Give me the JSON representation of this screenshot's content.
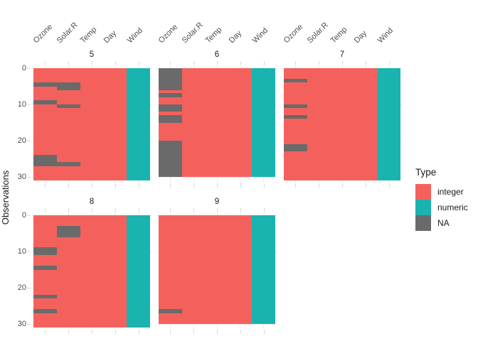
{
  "figure": {
    "y_axis_title": "Observations",
    "legend": {
      "title": "Type",
      "items": [
        {
          "label": "integer",
          "color": "#F4615C"
        },
        {
          "label": "numeric",
          "color": "#19B3B0"
        },
        {
          "label": "NA",
          "color": "#6A6A6A"
        }
      ]
    }
  },
  "chart_data": {
    "type": "heatmap",
    "ylabel": "Observations",
    "yticks": [
      0,
      10,
      20,
      30
    ],
    "ylim": [
      0,
      31
    ],
    "columns": [
      "Ozone",
      "Solar.R",
      "Temp",
      "Day",
      "Wind"
    ],
    "column_types": {
      "Ozone": "integer",
      "Solar.R": "integer",
      "Temp": "integer",
      "Day": "integer",
      "Wind": "numeric"
    },
    "type_colors": {
      "integer": "#F4615C",
      "numeric": "#19B3B0",
      "NA": "#6A6A6A"
    },
    "grid_color": "#ebebeb",
    "tick_color": "#d9d9d9",
    "facets": [
      {
        "label": "5",
        "rows": 31,
        "na": {
          "Ozone": [
            5,
            10,
            25,
            26,
            27
          ],
          "Solar.R": [
            5,
            6,
            11,
            27
          ]
        }
      },
      {
        "label": "6",
        "rows": 30,
        "na": {
          "Ozone": [
            1,
            2,
            3,
            4,
            5,
            6,
            8,
            11,
            12,
            14,
            15,
            21,
            22,
            23,
            24,
            25,
            26,
            27,
            28,
            29,
            30
          ]
        }
      },
      {
        "label": "7",
        "rows": 31,
        "na": {
          "Ozone": [
            4,
            11,
            14,
            22,
            23
          ]
        }
      },
      {
        "label": "8",
        "rows": 31,
        "na": {
          "Ozone": [
            10,
            11,
            15,
            23,
            27
          ],
          "Solar.R": [
            4,
            5,
            6
          ]
        }
      },
      {
        "label": "9",
        "rows": 30,
        "na": {
          "Ozone": [
            27
          ]
        }
      }
    ]
  }
}
